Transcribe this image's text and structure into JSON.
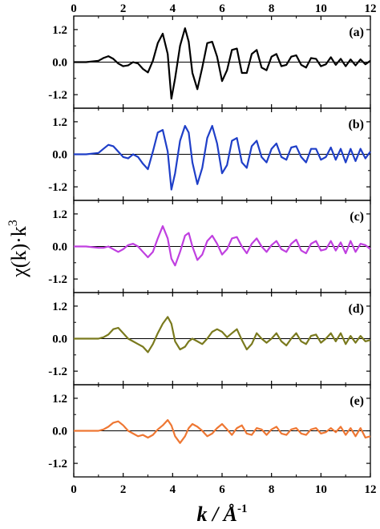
{
  "chart_data": {
    "type": "line",
    "xlim": [
      0,
      12
    ],
    "x_ticks": [
      0,
      2,
      4,
      6,
      8,
      10,
      12
    ],
    "x_tick_labels": [
      "0",
      "2",
      "4",
      "6",
      "8",
      "10",
      "12"
    ],
    "top_x_tick_labels": [
      "0",
      "2",
      "4",
      "6",
      "8",
      "10",
      "12"
    ],
    "xlabel": {
      "italic": "k",
      "rest": " / Å",
      "superscript": "-1"
    },
    "ylabel": {
      "main": "χ(k)·k",
      "superscript": "3"
    },
    "ylim": [
      -1.7,
      1.7
    ],
    "y_ticks": [
      -1.2,
      0.0,
      1.2
    ],
    "y_tick_labels": [
      "-1.2",
      "0.0",
      "1.2"
    ],
    "zero_line": true,
    "grid": false,
    "panels": [
      {
        "label": "(a)",
        "color": "#000000",
        "x": [
          0.0,
          0.5,
          1.0,
          1.2,
          1.4,
          1.6,
          1.8,
          2.0,
          2.2,
          2.4,
          2.6,
          2.8,
          3.0,
          3.2,
          3.4,
          3.6,
          3.8,
          3.95,
          4.1,
          4.3,
          4.5,
          4.65,
          4.8,
          5.0,
          5.2,
          5.4,
          5.6,
          5.8,
          6.0,
          6.2,
          6.4,
          6.6,
          6.8,
          7.0,
          7.2,
          7.4,
          7.6,
          7.8,
          8.0,
          8.2,
          8.4,
          8.6,
          8.8,
          9.0,
          9.2,
          9.4,
          9.6,
          9.8,
          10.0,
          10.2,
          10.4,
          10.6,
          10.8,
          11.0,
          11.2,
          11.4,
          11.6,
          11.8,
          12.0
        ],
        "y": [
          0.0,
          0.0,
          0.05,
          0.15,
          0.22,
          0.12,
          -0.05,
          -0.15,
          -0.12,
          0.0,
          -0.05,
          -0.25,
          -0.38,
          0.05,
          0.7,
          1.05,
          0.3,
          -1.35,
          -0.6,
          0.6,
          1.25,
          0.75,
          -0.4,
          -1.0,
          -0.2,
          0.7,
          0.75,
          0.2,
          -0.7,
          -0.3,
          0.45,
          0.5,
          -0.4,
          -0.4,
          0.3,
          0.45,
          -0.2,
          -0.3,
          0.2,
          0.3,
          -0.15,
          -0.1,
          0.2,
          0.25,
          -0.1,
          -0.2,
          0.15,
          0.12,
          -0.15,
          -0.08,
          0.18,
          -0.1,
          0.12,
          -0.15,
          0.1,
          -0.12,
          0.1,
          -0.08,
          0.05
        ]
      },
      {
        "label": "(b)",
        "color": "#1f3fc8",
        "x": [
          0.0,
          0.5,
          1.0,
          1.2,
          1.4,
          1.6,
          1.8,
          2.0,
          2.2,
          2.4,
          2.6,
          2.8,
          3.0,
          3.2,
          3.4,
          3.6,
          3.8,
          3.95,
          4.1,
          4.3,
          4.5,
          4.65,
          4.8,
          5.0,
          5.2,
          5.4,
          5.6,
          5.8,
          6.0,
          6.2,
          6.4,
          6.6,
          6.8,
          7.0,
          7.2,
          7.4,
          7.6,
          7.8,
          8.0,
          8.2,
          8.4,
          8.6,
          8.8,
          9.0,
          9.2,
          9.4,
          9.6,
          9.8,
          10.0,
          10.2,
          10.4,
          10.6,
          10.8,
          11.0,
          11.2,
          11.4,
          11.6,
          11.8,
          12.0
        ],
        "y": [
          0.0,
          0.0,
          0.05,
          0.2,
          0.35,
          0.3,
          0.1,
          -0.1,
          -0.15,
          0.0,
          -0.1,
          -0.35,
          -0.55,
          0.1,
          0.8,
          0.9,
          0.1,
          -1.3,
          -0.7,
          0.5,
          1.05,
          0.8,
          -0.3,
          -1.1,
          -0.5,
          0.6,
          1.05,
          0.4,
          -0.7,
          -0.4,
          0.5,
          0.6,
          -0.3,
          -0.5,
          0.3,
          0.5,
          -0.1,
          -0.3,
          0.2,
          0.4,
          -0.1,
          -0.2,
          0.25,
          0.3,
          -0.1,
          -0.3,
          0.2,
          0.2,
          -0.2,
          -0.1,
          0.25,
          -0.2,
          0.2,
          -0.3,
          0.2,
          -0.25,
          0.2,
          -0.15,
          0.1
        ]
      },
      {
        "label": "(c)",
        "color": "#c040e0",
        "x": [
          0.0,
          0.5,
          1.0,
          1.2,
          1.4,
          1.6,
          1.8,
          2.0,
          2.2,
          2.4,
          2.6,
          2.8,
          3.0,
          3.2,
          3.4,
          3.6,
          3.8,
          3.95,
          4.1,
          4.3,
          4.5,
          4.65,
          4.8,
          5.0,
          5.2,
          5.4,
          5.6,
          5.8,
          6.0,
          6.2,
          6.4,
          6.6,
          6.8,
          7.0,
          7.2,
          7.4,
          7.6,
          7.8,
          8.0,
          8.2,
          8.4,
          8.6,
          8.8,
          9.0,
          9.2,
          9.4,
          9.6,
          9.8,
          10.0,
          10.2,
          10.4,
          10.6,
          10.8,
          11.0,
          11.2,
          11.4,
          11.6,
          11.8,
          12.0
        ],
        "y": [
          0.0,
          0.0,
          -0.05,
          -0.05,
          0.0,
          -0.1,
          -0.2,
          -0.1,
          0.05,
          0.1,
          0.0,
          -0.2,
          -0.4,
          -0.2,
          0.3,
          0.75,
          0.3,
          -0.45,
          -0.7,
          -0.2,
          0.4,
          0.5,
          0.0,
          -0.5,
          -0.3,
          0.2,
          0.4,
          0.1,
          -0.3,
          -0.1,
          0.3,
          0.35,
          0.0,
          -0.25,
          0.1,
          0.3,
          0.0,
          -0.2,
          0.05,
          0.2,
          -0.1,
          -0.2,
          0.1,
          0.25,
          -0.15,
          -0.25,
          0.1,
          0.2,
          -0.15,
          -0.1,
          0.2,
          -0.15,
          0.15,
          -0.25,
          0.2,
          -0.2,
          0.1,
          0.05,
          -0.1
        ]
      },
      {
        "label": "(d)",
        "color": "#7a7a1e",
        "x": [
          0.0,
          0.5,
          1.0,
          1.2,
          1.4,
          1.6,
          1.8,
          2.0,
          2.2,
          2.4,
          2.6,
          2.8,
          3.0,
          3.2,
          3.4,
          3.6,
          3.8,
          3.95,
          4.1,
          4.3,
          4.5,
          4.65,
          4.8,
          5.0,
          5.2,
          5.4,
          5.6,
          5.8,
          6.0,
          6.2,
          6.4,
          6.6,
          6.8,
          7.0,
          7.2,
          7.4,
          7.6,
          7.8,
          8.0,
          8.2,
          8.4,
          8.6,
          8.8,
          9.0,
          9.2,
          9.4,
          9.6,
          9.8,
          10.0,
          10.2,
          10.4,
          10.6,
          10.8,
          11.0,
          11.2,
          11.4,
          11.6,
          11.8,
          12.0
        ],
        "y": [
          0.0,
          0.0,
          0.0,
          0.05,
          0.15,
          0.35,
          0.4,
          0.2,
          0.0,
          -0.1,
          -0.2,
          -0.3,
          -0.5,
          -0.2,
          0.2,
          0.55,
          0.8,
          0.55,
          -0.1,
          -0.4,
          -0.3,
          -0.1,
          0.0,
          -0.1,
          -0.2,
          0.0,
          0.25,
          0.35,
          0.25,
          0.05,
          0.2,
          0.35,
          -0.05,
          -0.4,
          -0.2,
          0.2,
          0.0,
          -0.15,
          0.0,
          0.2,
          -0.1,
          -0.25,
          0.0,
          0.2,
          -0.1,
          -0.2,
          0.1,
          0.15,
          -0.15,
          0.0,
          0.2,
          -0.1,
          0.2,
          -0.2,
          0.1,
          -0.15,
          0.1,
          -0.1,
          -0.05
        ]
      },
      {
        "label": "(e)",
        "color": "#ee7733",
        "x": [
          0.0,
          0.5,
          1.0,
          1.2,
          1.4,
          1.6,
          1.8,
          2.0,
          2.2,
          2.4,
          2.6,
          2.8,
          3.0,
          3.2,
          3.4,
          3.6,
          3.8,
          3.95,
          4.1,
          4.3,
          4.5,
          4.65,
          4.8,
          5.0,
          5.2,
          5.4,
          5.6,
          5.8,
          6.0,
          6.2,
          6.4,
          6.6,
          6.8,
          7.0,
          7.2,
          7.4,
          7.6,
          7.8,
          8.0,
          8.2,
          8.4,
          8.6,
          8.8,
          9.0,
          9.2,
          9.4,
          9.6,
          9.8,
          10.0,
          10.2,
          10.4,
          10.6,
          10.8,
          11.0,
          11.2,
          11.4,
          11.6,
          11.8,
          12.0
        ],
        "y": [
          0.0,
          0.0,
          0.0,
          0.05,
          0.15,
          0.3,
          0.35,
          0.2,
          0.0,
          -0.1,
          -0.2,
          -0.15,
          -0.25,
          -0.15,
          0.05,
          0.2,
          0.4,
          0.2,
          -0.2,
          -0.45,
          -0.2,
          0.1,
          0.25,
          0.15,
          0.0,
          -0.2,
          -0.1,
          0.1,
          0.25,
          0.05,
          -0.15,
          0.1,
          0.2,
          -0.1,
          -0.15,
          0.1,
          0.05,
          -0.15,
          0.05,
          0.15,
          -0.1,
          -0.15,
          0.05,
          0.1,
          -0.1,
          -0.15,
          0.05,
          0.1,
          -0.1,
          -0.05,
          0.1,
          -0.05,
          0.15,
          -0.15,
          0.1,
          -0.2,
          0.1,
          -0.25,
          -0.2
        ]
      }
    ]
  }
}
